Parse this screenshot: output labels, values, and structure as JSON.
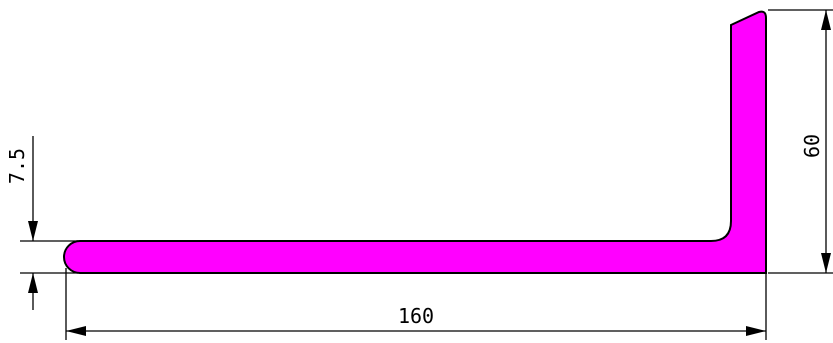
{
  "drawing": {
    "dimensions": {
      "width_value": "160",
      "height_value": "60",
      "thickness_value": "7.5"
    },
    "colors": {
      "profile_fill": "#ff00ff",
      "outline": "#000000",
      "background": "#ffffff"
    }
  }
}
